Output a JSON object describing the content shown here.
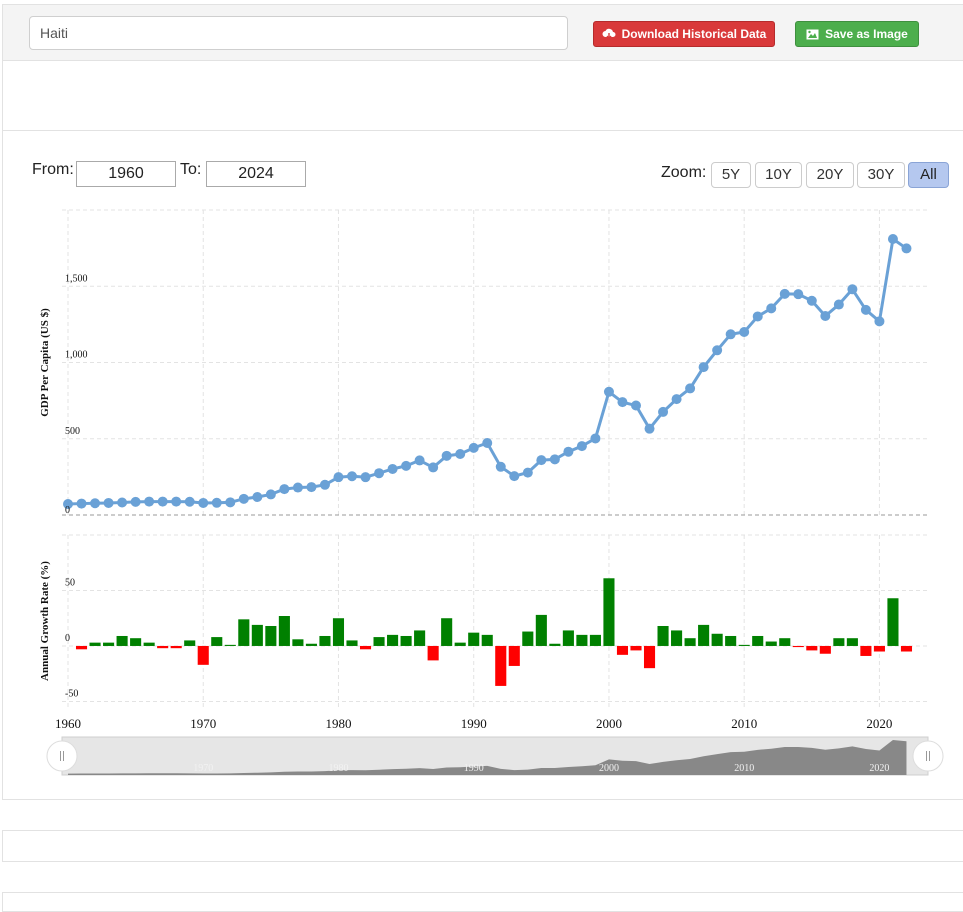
{
  "search": {
    "value": "Haiti"
  },
  "toolbar": {
    "download_label": "Download Historical Data",
    "save_label": "Save as Image",
    "download_color": "#d9393a",
    "save_color": "#4cae4c"
  },
  "range": {
    "from_label": "From:",
    "from_value": "1960",
    "to_label": "To:",
    "to_value": "2024"
  },
  "zoom": {
    "label": "Zoom:",
    "buttons": [
      "5Y",
      "10Y",
      "20Y",
      "30Y",
      "All"
    ],
    "active": "All"
  },
  "chart_data": [
    {
      "type": "line",
      "ylabel": "GDP Per Capita (US $)",
      "color": "#6aa1d6",
      "ylim": [
        0,
        2000
      ],
      "yticks": [
        0,
        500,
        1000,
        1500
      ],
      "ytick_labels": [
        "0",
        "500",
        "1,000",
        "1,500"
      ],
      "x": [
        1960,
        1961,
        1962,
        1963,
        1964,
        1965,
        1966,
        1967,
        1968,
        1969,
        1970,
        1971,
        1972,
        1973,
        1974,
        1975,
        1976,
        1977,
        1978,
        1979,
        1980,
        1981,
        1982,
        1983,
        1984,
        1985,
        1986,
        1987,
        1988,
        1989,
        1990,
        1991,
        1992,
        1993,
        1994,
        1995,
        1996,
        1997,
        1998,
        1999,
        2000,
        2001,
        2002,
        2003,
        2004,
        2005,
        2006,
        2007,
        2008,
        2009,
        2010,
        2011,
        2012,
        2013,
        2014,
        2015,
        2016,
        2017,
        2018,
        2019,
        2020,
        2021,
        2022
      ],
      "values": [
        72,
        75,
        77,
        79,
        82,
        86,
        88,
        88,
        88,
        87,
        79,
        80,
        83,
        106,
        118,
        135,
        170,
        180,
        183,
        198,
        248,
        254,
        248,
        274,
        302,
        322,
        358,
        312,
        388,
        400,
        440,
        472,
        316,
        255,
        278,
        360,
        365,
        415,
        452,
        502,
        808,
        740,
        718,
        566,
        676,
        760,
        830,
        970,
        1080,
        1185,
        1200,
        1302,
        1355,
        1450,
        1448,
        1405,
        1305,
        1380,
        1480,
        1345,
        1270,
        1810,
        1748
      ]
    },
    {
      "type": "bar",
      "ylabel": "Annual Growth Rate (%)",
      "ylim": [
        -55,
        100
      ],
      "yticks": [
        -50,
        0,
        50
      ],
      "ytick_labels": [
        "-50",
        "0",
        "50"
      ],
      "positive_color": "#008000",
      "negative_color": "#ff0000",
      "x": [
        1961,
        1962,
        1963,
        1964,
        1965,
        1966,
        1967,
        1968,
        1969,
        1970,
        1971,
        1972,
        1973,
        1974,
        1975,
        1976,
        1977,
        1978,
        1979,
        1980,
        1981,
        1982,
        1983,
        1984,
        1985,
        1986,
        1987,
        1988,
        1989,
        1990,
        1991,
        1992,
        1993,
        1994,
        1995,
        1996,
        1997,
        1998,
        1999,
        2000,
        2001,
        2002,
        2003,
        2004,
        2005,
        2006,
        2007,
        2008,
        2009,
        2010,
        2011,
        2012,
        2013,
        2014,
        2015,
        2016,
        2017,
        2018,
        2019,
        2020,
        2021,
        2022
      ],
      "values": [
        -3,
        3,
        3,
        9,
        7,
        3,
        -2,
        -2,
        5,
        -17,
        8,
        1,
        24,
        19,
        18,
        27,
        6,
        2,
        9,
        25,
        5,
        -3,
        8,
        10,
        9,
        14,
        -13,
        25,
        3,
        12,
        10,
        -36,
        -18,
        13,
        28,
        2,
        14,
        10,
        10,
        61,
        -8,
        -4,
        -20,
        18,
        14,
        7,
        19,
        11,
        9,
        1,
        9,
        4,
        7,
        -1,
        -4,
        -7,
        7,
        7,
        -9,
        -5,
        43,
        -5
      ]
    }
  ],
  "xaxis": {
    "ticks": [
      1960,
      1970,
      1980,
      1990,
      2000,
      2010,
      2020
    ],
    "tick_labels": [
      "1960",
      "1970",
      "1980",
      "1990",
      "2000",
      "2010",
      "2020"
    ],
    "xlim": [
      1960,
      2023
    ]
  },
  "navigator": {
    "tick_labels": [
      "1970",
      "1980",
      "1990",
      "2000",
      "2010",
      "2020"
    ],
    "handle_left_icon": "grip-icon",
    "handle_right_icon": "grip-icon",
    "fill_color": "#888888"
  }
}
